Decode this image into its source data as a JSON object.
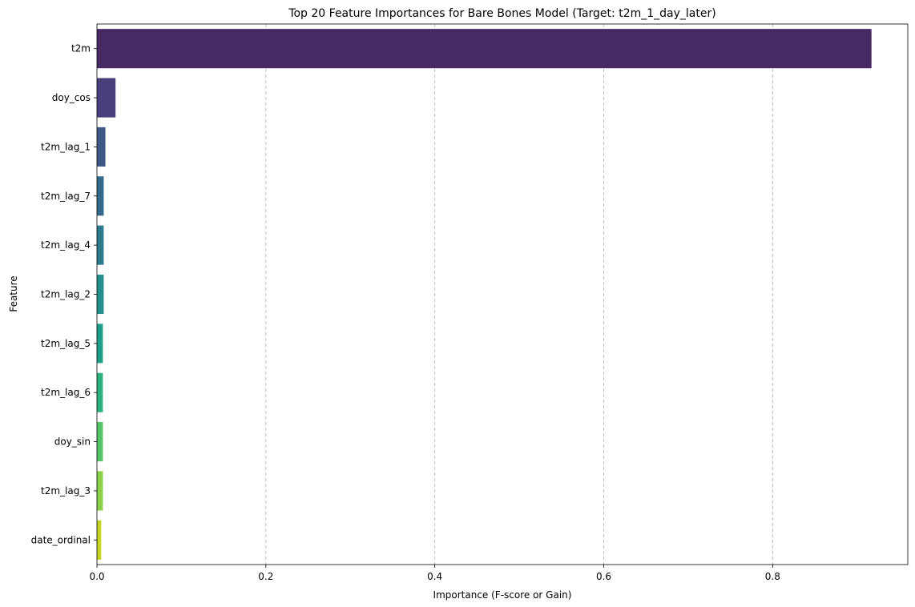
{
  "chart_data": {
    "type": "bar",
    "orientation": "horizontal",
    "title": "Top 20 Feature Importances for Bare Bones Model (Target: t2m_1_day_later)",
    "xlabel": "Importance (F-score or Gain)",
    "ylabel": "Feature",
    "xlim": [
      0,
      0.96
    ],
    "xticks": [
      0.0,
      0.2,
      0.4,
      0.6,
      0.8
    ],
    "xtick_labels": [
      "0.0",
      "0.2",
      "0.4",
      "0.6",
      "0.8"
    ],
    "grid": "x-dashed",
    "categories": [
      "t2m",
      "doy_cos",
      "t2m_lag_1",
      "t2m_lag_7",
      "t2m_lag_4",
      "t2m_lag_2",
      "t2m_lag_5",
      "t2m_lag_6",
      "doy_sin",
      "t2m_lag_3",
      "date_ordinal"
    ],
    "values": [
      0.917,
      0.022,
      0.01,
      0.008,
      0.008,
      0.008,
      0.007,
      0.007,
      0.007,
      0.007,
      0.005
    ],
    "colors": [
      "#472a63",
      "#48407d",
      "#3f5687",
      "#336a8c",
      "#2b7c8e",
      "#23908c",
      "#1f9f88",
      "#2db27d",
      "#52c569",
      "#8ad048",
      "#c6d523"
    ]
  }
}
